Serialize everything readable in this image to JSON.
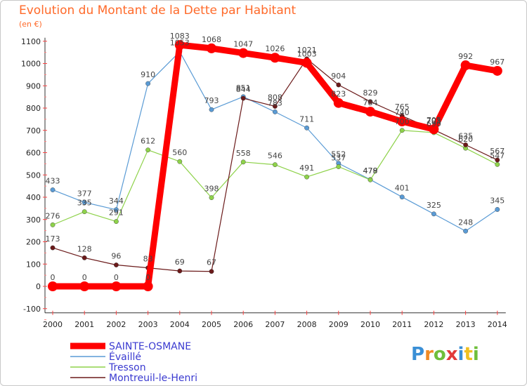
{
  "title": "Evolution du Montant de la Dette par Habitant",
  "subtitle": "(en €)",
  "logo": {
    "letters": [
      "P",
      "r",
      "o",
      "x",
      "i",
      "t",
      "i"
    ],
    "colors": [
      "#3a8fd6",
      "#f08a24",
      "#6fbf3b",
      "#e23a3a",
      "#3a8fd6",
      "#f0c020",
      "#6fbf3b"
    ]
  },
  "chart_data": {
    "type": "line",
    "title": "Evolution du Montant de la Dette par Habitant",
    "ylabel": "(en €)",
    "x": [
      "2000",
      "2001",
      "2002",
      "2003",
      "2004",
      "2005",
      "2006",
      "2007",
      "2008",
      "2009",
      "2010",
      "2011",
      "2012",
      "2013",
      "2014"
    ],
    "ylim": [
      -100,
      1100
    ],
    "yticks": [
      "1100",
      "1000",
      "900",
      "800",
      "700",
      "600",
      "500",
      "400",
      "300",
      "200",
      "100",
      "0",
      "-100"
    ],
    "grid": false,
    "legend_position": "bottom-left",
    "series": [
      {
        "name": "SAINTE-OSMANE",
        "color": "#ff0000",
        "values": [
          0,
          0,
          0,
          0,
          1083,
          1068,
          1047,
          1026,
          1003,
          823,
          784,
          740,
          705,
          992,
          967
        ],
        "labels": [
          "0",
          "0",
          "0",
          "0",
          "1083",
          "1068",
          "1047",
          "1026",
          "1003",
          "823",
          "784",
          "740",
          "705",
          "992",
          "967"
        ]
      },
      {
        "name": "Évaillé",
        "color": "#5a9bd5",
        "values": [
          433,
          377,
          344,
          910,
          1053,
          793,
          851,
          783,
          711,
          552,
          479,
          401,
          325,
          248,
          345
        ],
        "labels": [
          "433",
          "377",
          "344",
          "910",
          "1053",
          "793",
          "851",
          "783",
          "711",
          "552",
          "479",
          "401",
          "325",
          "248",
          "345"
        ]
      },
      {
        "name": "Tresson",
        "color": "#8ed24a",
        "values": [
          276,
          335,
          291,
          612,
          560,
          398,
          558,
          546,
          491,
          537,
          478,
          700,
          690,
          620,
          547
        ],
        "labels": [
          "276",
          "335",
          "291",
          "612",
          "560",
          "398",
          "558",
          "546",
          "491",
          "537",
          "478",
          "700",
          "690",
          "620",
          "547"
        ]
      },
      {
        "name": "Montreuil-le-Henri",
        "color": "#6b1a1a",
        "values": [
          173,
          128,
          96,
          83,
          69,
          67,
          844,
          808,
          1021,
          904,
          829,
          765,
          703,
          635,
          567
        ],
        "labels": [
          "173",
          "128",
          "96",
          "83",
          "69",
          "67",
          "844",
          "808",
          "1021",
          "904",
          "829",
          "765",
          "703",
          "635",
          "567"
        ]
      }
    ]
  }
}
